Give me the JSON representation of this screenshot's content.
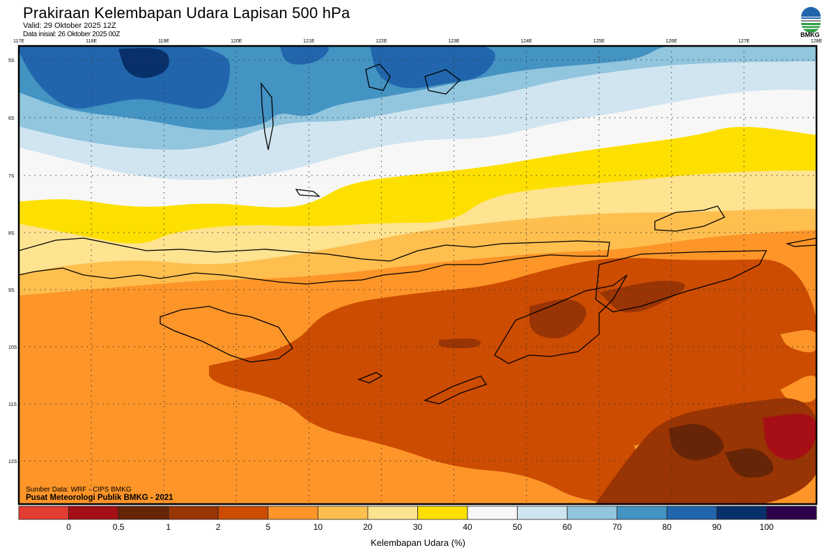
{
  "header": {
    "title": "Prakiraan Kelembapan Udara Lapisan 500 hPa",
    "valid": "Valid: 29 Oktober 2025 12Z",
    "initial": "Data inisial: 26 Oktober 2025 00Z",
    "logo_text": "BMKG"
  },
  "map": {
    "lon_labels": [
      "117E",
      "118E",
      "119E",
      "120E",
      "121E",
      "122E",
      "123E",
      "124E",
      "125E",
      "126E",
      "127E",
      "128E"
    ],
    "lat_labels": [
      "5S",
      "6S",
      "7S",
      "8S",
      "9S",
      "10S",
      "11S",
      "12S"
    ],
    "source": "Sumber Data: WRF - CIPS BMKG",
    "credit": "Pusat Meteorologi Publik BMKG - 2021"
  },
  "legend": {
    "title": "Kelembapan Udara (%)",
    "ticks": [
      "0",
      "0.5",
      "1",
      "2",
      "5",
      "10",
      "20",
      "30",
      "40",
      "50",
      "60",
      "70",
      "80",
      "90",
      "100"
    ],
    "colors": [
      "#e33d33",
      "#a50f15",
      "#662506",
      "#993404",
      "#cc4c02",
      "#fd9528",
      "#febf4f",
      "#fee391",
      "#fde000",
      "#f7f7f7",
      "#d1e5f0",
      "#92c5de",
      "#4393c3",
      "#2166ac",
      "#08306b",
      "#2d004b"
    ]
  }
}
